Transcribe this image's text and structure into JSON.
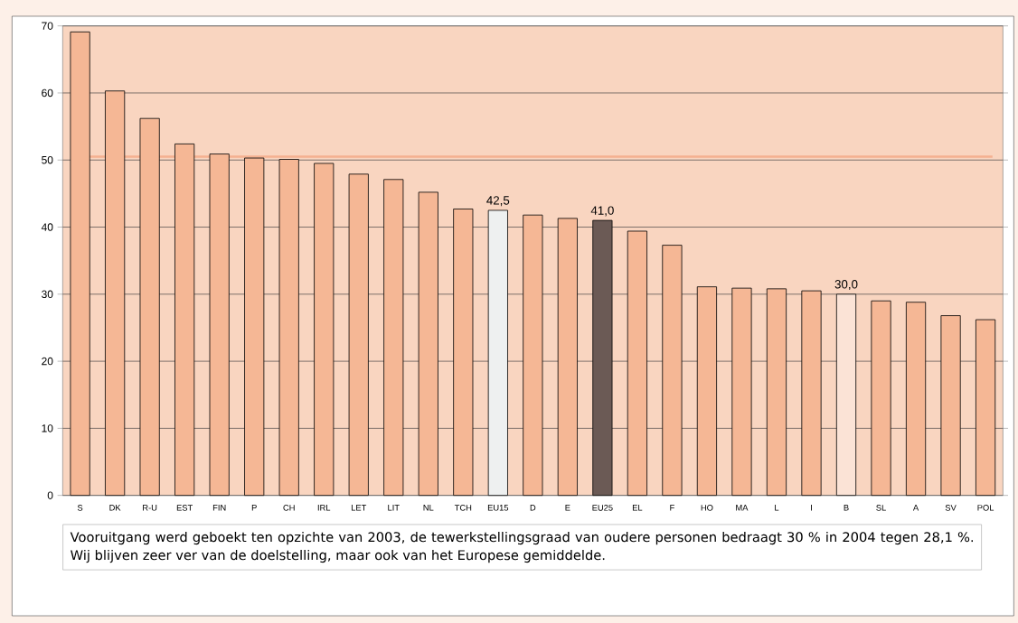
{
  "chart_data": {
    "type": "bar",
    "categories": [
      "S",
      "DK",
      "R-U",
      "EST",
      "FIN",
      "P",
      "CH",
      "IRL",
      "LET",
      "LIT",
      "NL",
      "TCH",
      "EU15",
      "D",
      "E",
      "EU25",
      "EL",
      "F",
      "HO",
      "MA",
      "L",
      "I",
      "B",
      "SL",
      "A",
      "SV",
      "POL"
    ],
    "values": [
      69.1,
      60.3,
      56.2,
      52.4,
      50.9,
      50.3,
      50.1,
      49.5,
      47.9,
      47.1,
      45.2,
      42.7,
      42.5,
      41.8,
      41.3,
      41.0,
      39.4,
      37.3,
      31.1,
      30.9,
      30.8,
      30.5,
      30.0,
      29.0,
      28.8,
      26.8,
      26.2
    ],
    "colors": [
      "#f5b795",
      "#f5b795",
      "#f5b795",
      "#f5b795",
      "#f5b795",
      "#f5b795",
      "#f5b795",
      "#f5b795",
      "#f5b795",
      "#f5b795",
      "#f5b795",
      "#f5b795",
      "#eef0f0",
      "#f5b795",
      "#f5b795",
      "#6b5a55",
      "#f5b795",
      "#f5b795",
      "#f5b795",
      "#f5b795",
      "#f5b795",
      "#f5b795",
      "#fbe3d6",
      "#f5b795",
      "#f5b795",
      "#f5b795",
      "#f5b795"
    ],
    "value_labels": [
      null,
      null,
      null,
      null,
      null,
      null,
      null,
      null,
      null,
      null,
      null,
      null,
      "42,5",
      null,
      null,
      "41,0",
      null,
      null,
      null,
      null,
      null,
      null,
      "30,0",
      null,
      null,
      null,
      null
    ],
    "ylim": [
      0,
      70
    ],
    "yticks": [
      0,
      10,
      20,
      30,
      40,
      50,
      60,
      70
    ],
    "grid": "y",
    "ref_lines": [
      {
        "axis": "y",
        "value": 50.5,
        "color": "#f5b090"
      }
    ],
    "annotations": [
      "Vooruitgang werd geboekt ten opzichte van 2003, de tewerkstellingsgraad van oudere personen bedraagt 30 % in 2004 tegen 28,1 %. Wij blijven zeer ver van de doelstelling, maar ook van het Europese gemiddelde."
    ]
  }
}
